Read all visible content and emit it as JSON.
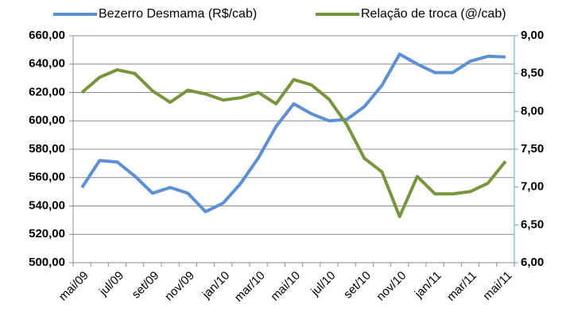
{
  "chart_data": {
    "type": "line",
    "categories": [
      "mai/09",
      null,
      "jul/09",
      null,
      "set/09",
      null,
      "nov/09",
      null,
      "jan/10",
      null,
      "mar/10",
      null,
      "mai/10",
      null,
      "jul/10",
      null,
      "set/10",
      null,
      "nov/10",
      null,
      "jan/11",
      null,
      "mar/11",
      null,
      "mai/11"
    ],
    "series": [
      {
        "name": "Bezerro Desmama (R$/cab)",
        "color": "#5b8fd6",
        "axis": "y",
        "values": [
          553,
          572,
          571,
          561,
          549,
          553,
          549,
          536,
          542,
          556,
          574,
          596,
          612,
          605,
          600,
          601,
          610,
          625,
          647,
          640,
          634,
          634,
          642,
          645.5,
          645
        ]
      },
      {
        "name": "Relação de troca (@/cab)",
        "color": "#77963c",
        "axis": "y2",
        "values": [
          8.25,
          8.45,
          8.55,
          8.5,
          8.27,
          8.12,
          8.28,
          8.23,
          8.15,
          8.18,
          8.25,
          8.1,
          8.42,
          8.35,
          8.16,
          7.83,
          7.38,
          7.2,
          6.61,
          7.14,
          6.91,
          6.91,
          6.94,
          7.05,
          7.34
        ]
      }
    ],
    "ylim": [
      500,
      660
    ],
    "yticks": [
      {
        "value": 500,
        "label": "500,00"
      },
      {
        "value": 520,
        "label": "520,00"
      },
      {
        "value": 540,
        "label": "540,00"
      },
      {
        "value": 560,
        "label": "560,00"
      },
      {
        "value": 580,
        "label": "580,00"
      },
      {
        "value": 600,
        "label": "600,00"
      },
      {
        "value": 620,
        "label": "620,00"
      },
      {
        "value": 640,
        "label": "640,00"
      },
      {
        "value": 660,
        "label": "660,00"
      }
    ],
    "y2lim": [
      6,
      9
    ],
    "y2ticks": [
      {
        "value": 6,
        "label": "6,00"
      },
      {
        "value": 6.5,
        "label": "6,50"
      },
      {
        "value": 7,
        "label": "7,00"
      },
      {
        "value": 7.5,
        "label": "7,50"
      },
      {
        "value": 8,
        "label": "8,00"
      },
      {
        "value": 8.5,
        "label": "8,50"
      },
      {
        "value": 9,
        "label": "9,00"
      }
    ],
    "grid": true
  }
}
